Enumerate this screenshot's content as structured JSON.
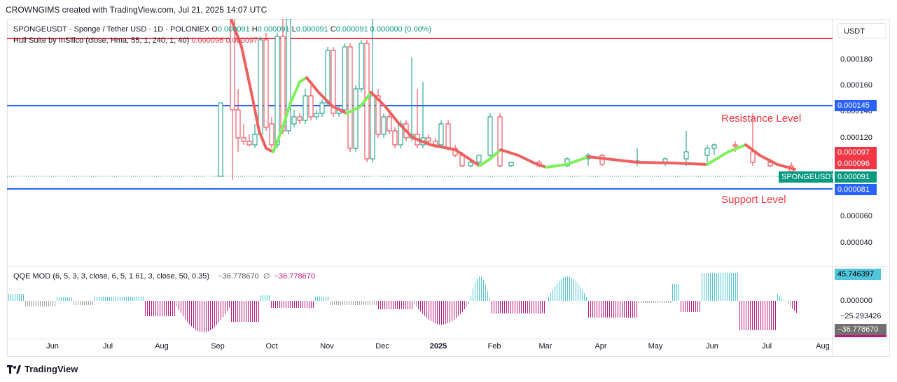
{
  "header": {
    "title": "CROWNGIMS created with TradingView.com, Jul 21, 2025 14:07 UTC"
  },
  "symbol_legend": {
    "name": "SPONGEUSDT · Sponge / Tether USD · 1D · POLONIEX",
    "o_label": "O",
    "o_value": "0.000091",
    "h_label": "H",
    "h_value": "0.000091",
    "l_label": "L",
    "l_value": "0.000091",
    "c_label": "C",
    "c_value": "0.000091",
    "change": "0.000000 (0.00%)"
  },
  "hull_legend": {
    "name": "Hull Suite by InSilico (close, Hma, 55, 1, 240, 1, 40)",
    "v1": "0.000096",
    "v2": "0.000097"
  },
  "qqe_legend": {
    "name": "QQE MOD (6, 5, 3, 3, close, 6, 5, 1.61, 3, close, 50, 0.35)",
    "v1": "−36.778670",
    "sep": "∅",
    "v2": "−36.778670"
  },
  "currency_button": "USDT",
  "price_axis": {
    "ticks": [
      "0.000180",
      "0.000160",
      "0.000140",
      "0.000120",
      "0.000060",
      "0.000040"
    ],
    "tags": {
      "resistance": "0.000145",
      "hull_upper": "0.000097",
      "hull_lower": "0.000096",
      "last_price": "0.000091",
      "support": "0.000081",
      "symbol": "SPONGEUSDT"
    }
  },
  "qqe_axis": {
    "ticks": [
      "0.000000",
      "−25.293426"
    ],
    "tags": {
      "top": "45.746397",
      "bottom": "−36.778670"
    }
  },
  "annotations": {
    "resistance": "Resistance Level",
    "support": "Support Level"
  },
  "time_axis": [
    "Jun",
    "Jul",
    "Aug",
    "Sep",
    "Oct",
    "Nov",
    "Dec",
    "2025",
    "Feb",
    "Mar",
    "Apr",
    "May",
    "Jun",
    "Jul",
    "Aug"
  ],
  "footer": {
    "brand": "TradingView"
  },
  "colors": {
    "up": "#089981",
    "down": "#f23645",
    "hull_up": "#7ef05a",
    "hull_down": "#f0605f",
    "level_red": "#f23645",
    "level_blue": "#2962ff",
    "qqe_pos": "#4ec5d9",
    "qqe_neg": "#c2187e",
    "qqe_neutral": "#a0a0a0"
  }
}
